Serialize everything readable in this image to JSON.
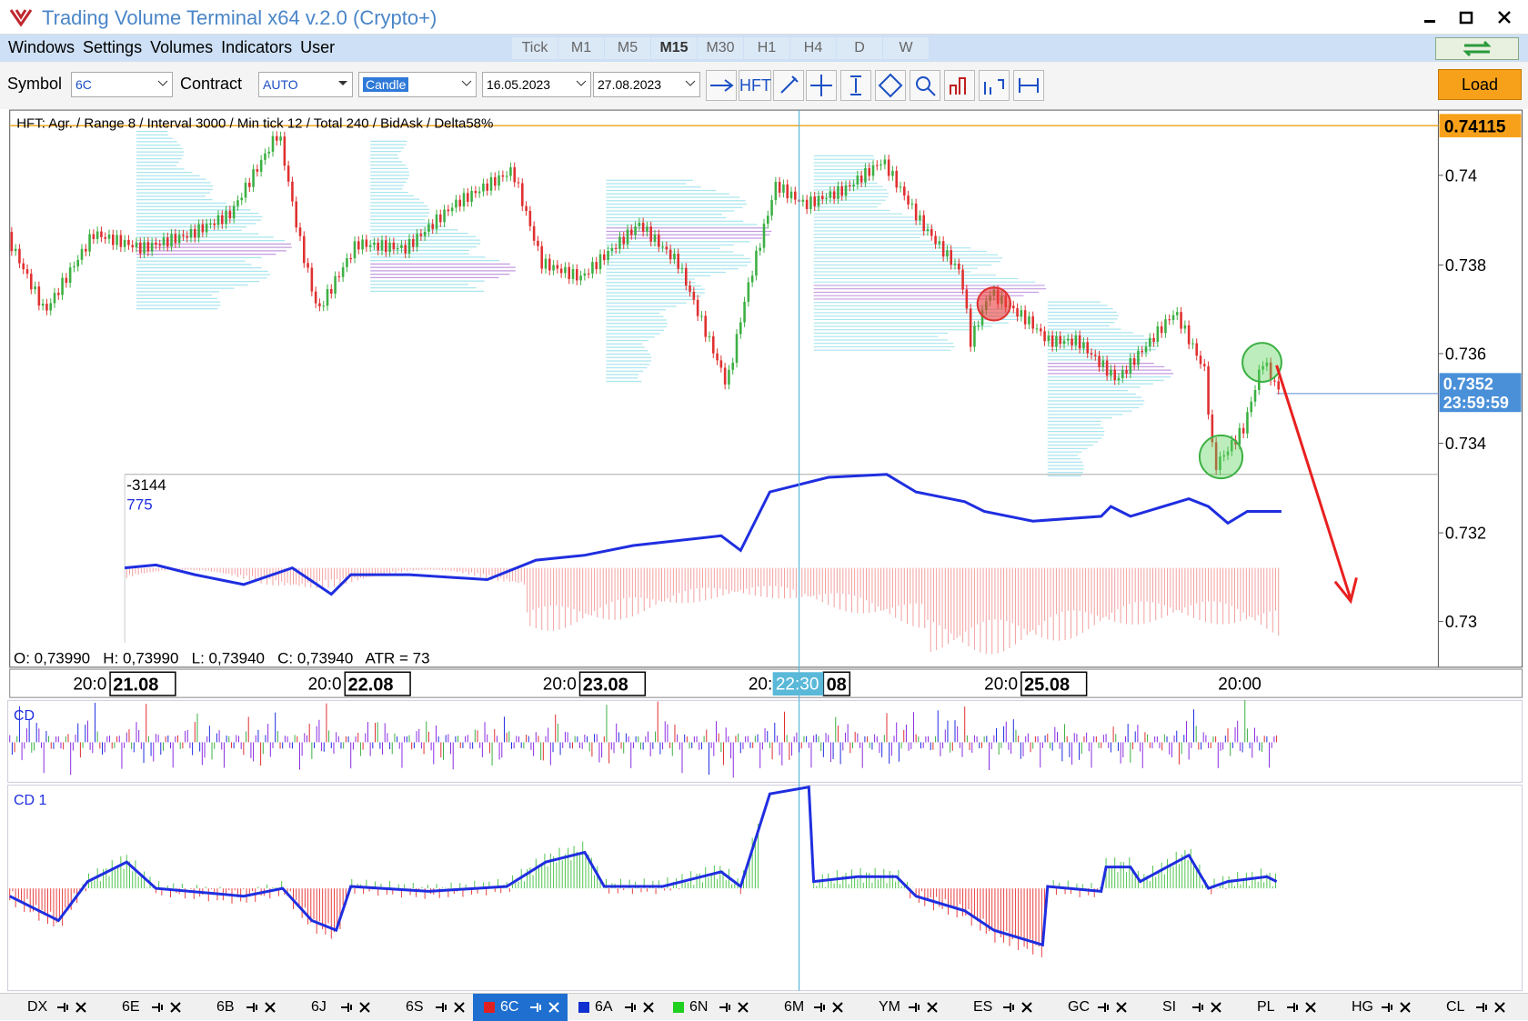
{
  "window": {
    "title": "Trading Volume Terminal x64 v.2.0 (Crypto+)"
  },
  "menu": [
    "Windows",
    "Settings",
    "Volumes",
    "Indicators",
    "User"
  ],
  "timeframes": [
    "Tick",
    "M1",
    "M5",
    "M15",
    "M30",
    "H1",
    "H4",
    "D",
    "W"
  ],
  "toolbar": {
    "symbol_label": "Symbol",
    "symbol": "6C",
    "contract_label": "Contract",
    "contract": "AUTO",
    "chart_type": "Candle",
    "date_from": "16.05.2023",
    "date_to": "27.08.2023",
    "hft": "HFT",
    "load": "Load"
  },
  "chart": {
    "info": "HFT: Agr. / Range 8 / Interval 3000 / Min tick 12 / Total 240 / BidAsk / Delta58%",
    "price_ticks": [
      "0.74",
      "0.738",
      "0.736",
      "0.734",
      "0.732",
      "0.73"
    ],
    "level": "0.74115",
    "last_price": "0.7352",
    "countdown": "23:59:59",
    "indicator_values": [
      "-3144",
      "775"
    ],
    "ohlc": "O: 0,73990   H: 0,73990   L: 0,73940   C: 0,73940   ATR = 73",
    "time_axis": [
      {
        "time": "20:0",
        "date": "21.08"
      },
      {
        "time": "20:0",
        "date": "22.08"
      },
      {
        "time": "20:0",
        "date": "23.08"
      },
      {
        "time": "20:",
        "date": "08"
      },
      {
        "time": "20:0",
        "date": "25.08"
      },
      {
        "time": "20:00"
      }
    ],
    "cursor_time": "22:30"
  },
  "panels": [
    "CD",
    "CD 1"
  ],
  "tabs": [
    "DX",
    "6E",
    "6B",
    "6J",
    "6S",
    "6C",
    "6A",
    "6N",
    "6M",
    "YM",
    "ES",
    "GC",
    "SI",
    "PL",
    "HG",
    "CL"
  ]
}
